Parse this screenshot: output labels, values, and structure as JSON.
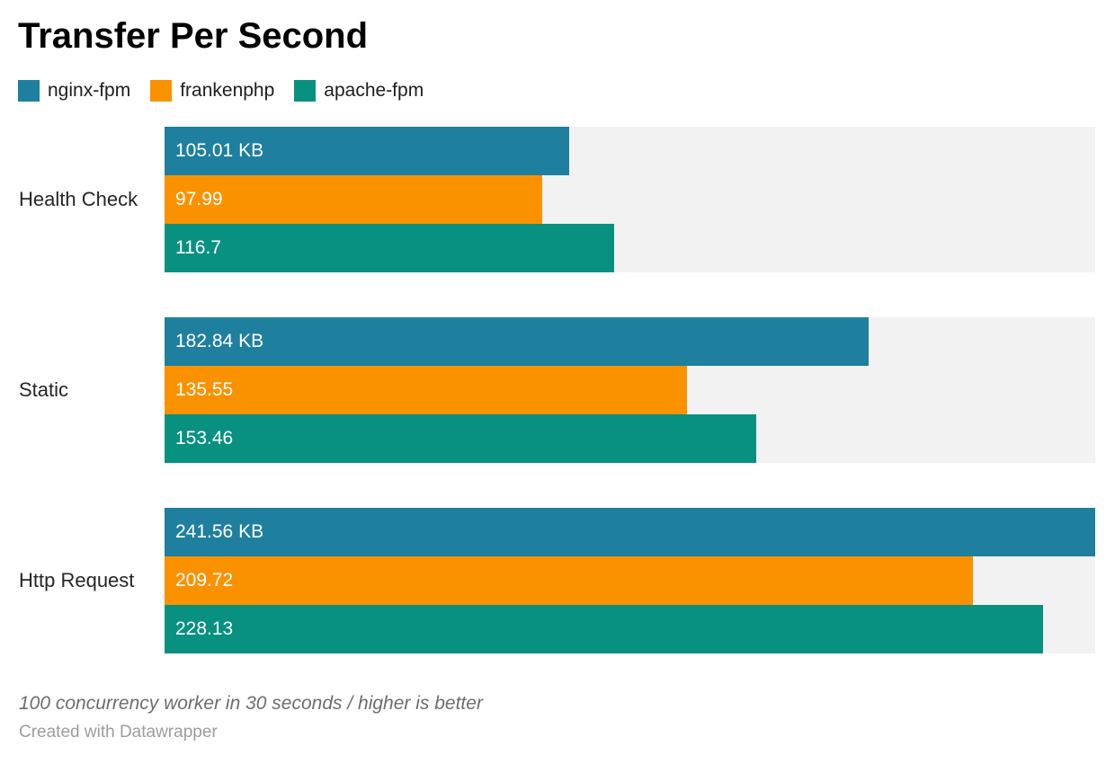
{
  "title": "Transfer Per Second",
  "chart_data": {
    "type": "bar",
    "orientation": "horizontal",
    "title": "Transfer Per Second",
    "categories": [
      "Health Check",
      "Static",
      "Http Request"
    ],
    "series": [
      {
        "name": "nginx-fpm",
        "color": "#1f7f9f",
        "values": [
          105.01,
          182.84,
          241.56
        ],
        "labels": [
          "105.01 KB",
          "182.84 KB",
          "241.56 KB"
        ]
      },
      {
        "name": "frankenphp",
        "color": "#fa9200",
        "values": [
          97.99,
          135.55,
          209.72
        ],
        "labels": [
          "97.99",
          "135.55",
          "209.72"
        ]
      },
      {
        "name": "apache-fpm",
        "color": "#089180",
        "values": [
          116.7,
          153.46,
          228.13
        ],
        "labels": [
          "116.7",
          "153.46",
          "228.13"
        ]
      }
    ],
    "unit": "KB",
    "xmax": 241.56,
    "track_color": "#f2f2f2",
    "grid": false,
    "legend_position": "top-left",
    "value_labels_inside_bars": true
  },
  "footer": {
    "note": "100 concurrency worker in 30 seconds / higher is better",
    "attribution": "Created with Datawrapper"
  }
}
